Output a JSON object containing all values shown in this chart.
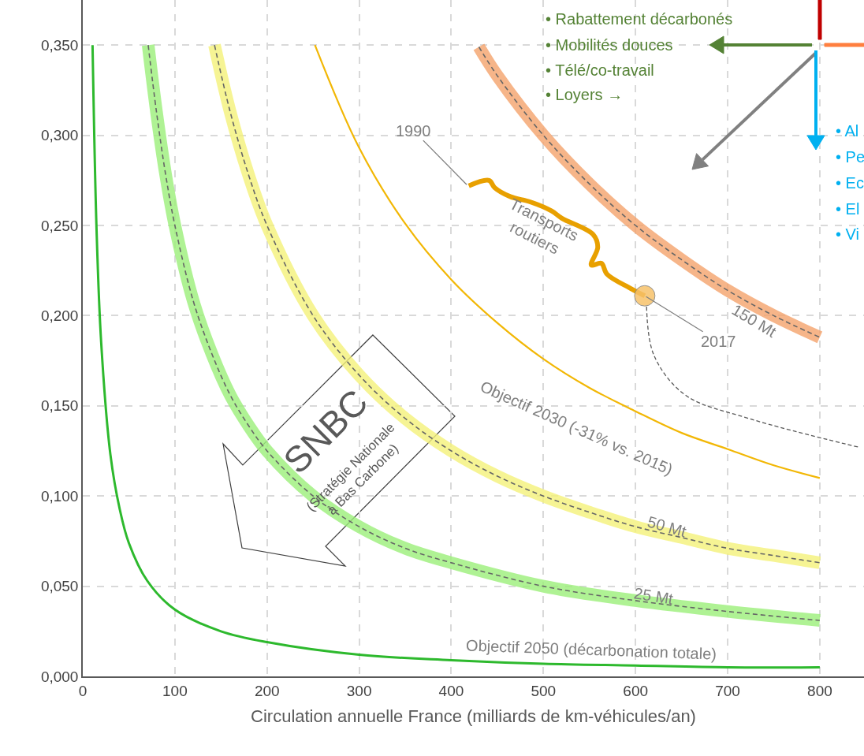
{
  "chart_data": {
    "type": "line",
    "xlabel": "Circulation annuelle France (milliards de km-véhicules/an)",
    "xlim": [
      0,
      848
    ],
    "ylim": [
      0,
      0.375
    ],
    "xticks": [
      0,
      100,
      200,
      300,
      400,
      500,
      600,
      700,
      800
    ],
    "yticks": [
      {
        "value": 0,
        "label": "0,000"
      },
      {
        "value": 0.05,
        "label": "0,050"
      },
      {
        "value": 0.1,
        "label": "0,100"
      },
      {
        "value": 0.15,
        "label": "0,150"
      },
      {
        "value": 0.2,
        "label": "0,200"
      },
      {
        "value": 0.25,
        "label": "0,250"
      },
      {
        "value": 0.3,
        "label": "0,300"
      },
      {
        "value": 0.35,
        "label": "0,350"
      }
    ],
    "grid": true,
    "legend": false,
    "marker": "none",
    "series": [
      {
        "name": "Objectif 2050 (décarbonation totale)",
        "color": "#2db92d",
        "x": [
          10.6,
          15,
          20,
          30,
          40,
          50,
          70,
          100,
          150,
          200,
          300,
          400,
          500,
          600,
          700,
          800
        ],
        "values": [
          0.35,
          0.247,
          0.185,
          0.123,
          0.093,
          0.074,
          0.053,
          0.037,
          0.025,
          0.019,
          0.012,
          0.009,
          0.007,
          0.006,
          0.005,
          0.005
        ]
      },
      {
        "color": "#9cf07a",
        "x": [
          71,
          80,
          90,
          100,
          120,
          140,
          160,
          180,
          200,
          250,
          300,
          350,
          400,
          500,
          600,
          700,
          800
        ],
        "values": [
          0.35,
          0.313,
          0.278,
          0.25,
          0.208,
          0.179,
          0.156,
          0.139,
          0.125,
          0.1,
          0.083,
          0.071,
          0.063,
          0.05,
          0.042,
          0.036,
          0.031
        ]
      },
      {
        "name": "25 Mt",
        "color": "#666666",
        "line_style": "dashed",
        "x": [
          71,
          80,
          90,
          100,
          120,
          140,
          160,
          180,
          200,
          250,
          300,
          350,
          400,
          500,
          600,
          700,
          800
        ],
        "values": [
          0.35,
          0.313,
          0.278,
          0.25,
          0.208,
          0.179,
          0.156,
          0.139,
          0.125,
          0.1,
          0.083,
          0.071,
          0.063,
          0.05,
          0.042,
          0.036,
          0.031
        ]
      },
      {
        "color": "#f5f27a",
        "x": [
          143,
          160,
          180,
          200,
          250,
          300,
          350,
          400,
          450,
          500,
          550,
          600,
          650,
          700,
          750,
          800
        ],
        "values": [
          0.35,
          0.313,
          0.278,
          0.25,
          0.2,
          0.167,
          0.143,
          0.125,
          0.111,
          0.1,
          0.091,
          0.083,
          0.077,
          0.071,
          0.067,
          0.063
        ]
      },
      {
        "name": "50 Mt",
        "color": "#666666",
        "line_style": "dashed",
        "x": [
          143,
          160,
          180,
          200,
          250,
          300,
          350,
          400,
          450,
          500,
          550,
          600,
          650,
          700,
          750,
          800
        ],
        "values": [
          0.35,
          0.313,
          0.278,
          0.25,
          0.2,
          0.167,
          0.143,
          0.125,
          0.111,
          0.1,
          0.091,
          0.083,
          0.077,
          0.071,
          0.067,
          0.063
        ]
      },
      {
        "name": "Objectif 2030 (-31% vs. 2015)",
        "color": "#f2b705",
        "x": [
          252,
          300,
          350,
          400,
          450,
          500,
          550,
          600,
          650,
          700,
          750,
          800
        ],
        "values": [
          0.35,
          0.293,
          0.251,
          0.22,
          0.196,
          0.176,
          0.16,
          0.147,
          0.135,
          0.126,
          0.117,
          0.11
        ]
      },
      {
        "color": "#f5a36c",
        "x": [
          430,
          450,
          500,
          550,
          600,
          650,
          700,
          750,
          800
        ],
        "values": [
          0.349,
          0.333,
          0.3,
          0.273,
          0.25,
          0.231,
          0.214,
          0.2,
          0.188
        ]
      },
      {
        "name": "150 Mt",
        "color": "#666666",
        "line_style": "dashed",
        "x": [
          430,
          450,
          500,
          550,
          600,
          650,
          700,
          750,
          800
        ],
        "values": [
          0.349,
          0.333,
          0.3,
          0.273,
          0.25,
          0.231,
          0.214,
          0.2,
          0.188
        ]
      },
      {
        "name": "Transports routiers",
        "color": "#e8a000",
        "x": [
          419,
          441,
          447,
          464,
          486,
          509,
          520,
          554,
          559,
          552,
          563,
          569,
          595,
          610
        ],
        "values": [
          0.272,
          0.275,
          0.271,
          0.266,
          0.263,
          0.258,
          0.254,
          0.245,
          0.238,
          0.228,
          0.229,
          0.223,
          0.215,
          0.211
        ]
      },
      {
        "color": "#595959",
        "line_style": "dashed",
        "x": [
          612,
          620,
          654,
          723,
          843
        ],
        "values": [
          0.205,
          0.178,
          0.156,
          0.143,
          0.127
        ]
      },
      {
        "type": "scatter",
        "marker": "circle",
        "color": "#f7c26b",
        "x": [
          610
        ],
        "values": [
          0.211
        ]
      }
    ],
    "annotations": [
      {
        "text": "1990",
        "x": 418,
        "y": 0.272
      },
      {
        "text": "2017",
        "x": 610,
        "y": 0.211
      },
      "• Rabattement décarbonés",
      "• Mobilités douces",
      "• Télé/co-travail",
      "• Loyers →",
      "• Al",
      "• Pe",
      "• Ec",
      "• El",
      "• Vi",
      "SNBC",
      "(Stratégie Nationale\nà Bas Carbone)"
    ]
  }
}
